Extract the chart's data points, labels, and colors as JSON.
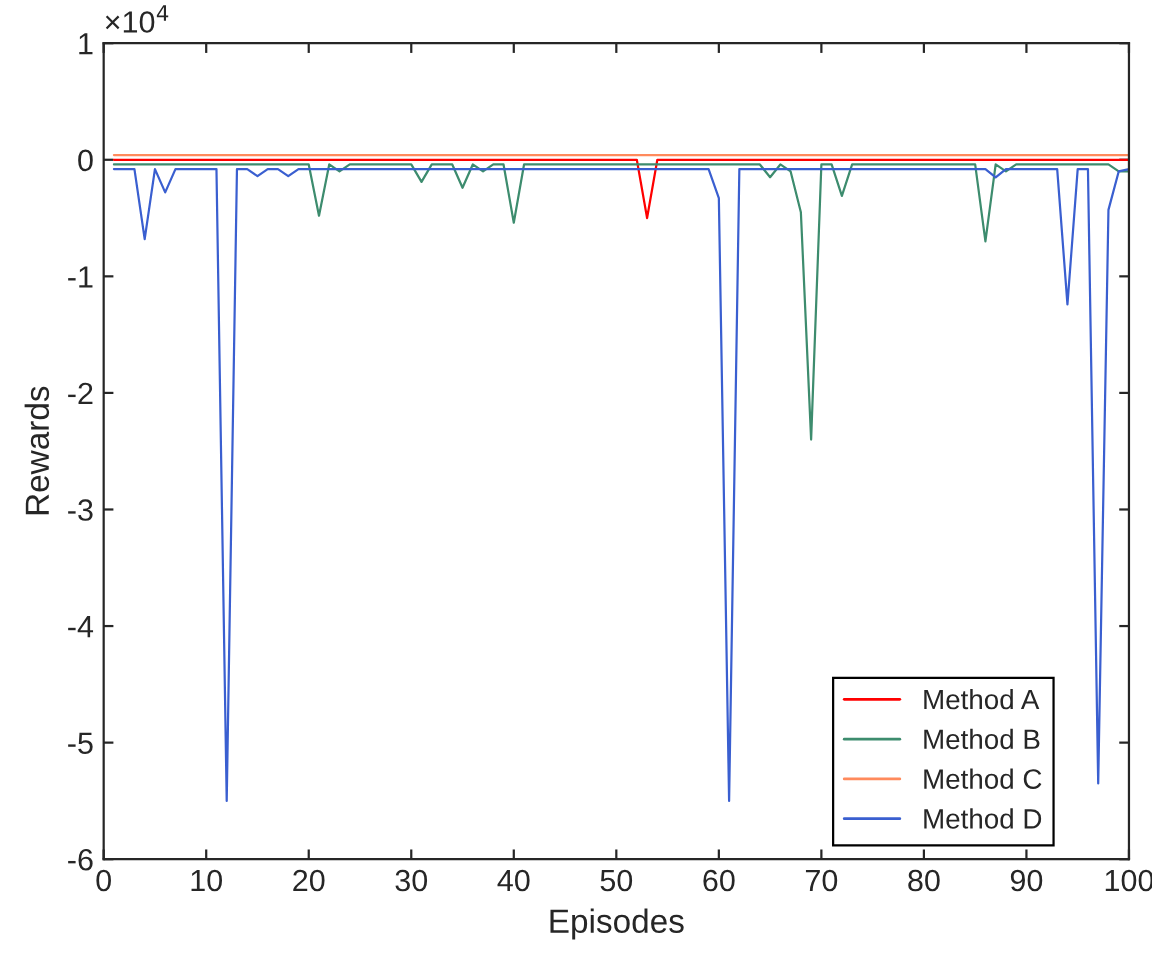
{
  "chart_data": {
    "type": "line",
    "xlabel": "Episodes",
    "ylabel": "Rewards",
    "annotations": [
      "×10$^{4}$"
    ],
    "x": [
      1,
      2,
      3,
      4,
      5,
      6,
      7,
      8,
      9,
      10,
      11,
      12,
      13,
      14,
      15,
      16,
      17,
      18,
      19,
      20,
      21,
      22,
      23,
      24,
      25,
      26,
      27,
      28,
      29,
      30,
      31,
      32,
      33,
      34,
      35,
      36,
      37,
      38,
      39,
      40,
      41,
      42,
      43,
      44,
      45,
      46,
      47,
      48,
      49,
      50,
      51,
      52,
      53,
      54,
      55,
      56,
      57,
      58,
      59,
      60,
      61,
      62,
      63,
      64,
      65,
      66,
      67,
      68,
      69,
      70,
      71,
      72,
      73,
      74,
      75,
      76,
      77,
      78,
      79,
      80,
      81,
      82,
      83,
      84,
      85,
      86,
      87,
      88,
      89,
      90,
      91,
      92,
      93,
      94,
      95,
      96,
      97,
      98,
      99,
      100
    ],
    "series": [
      {
        "name": "Method A",
        "color": "#ff0000",
        "values": [
          0,
          0,
          0,
          0,
          0,
          0,
          0,
          0,
          0,
          0,
          0,
          0,
          0,
          0,
          0,
          0,
          0,
          0,
          0,
          0,
          0,
          0,
          0,
          0,
          0,
          0,
          0,
          0,
          0,
          0,
          0,
          0,
          0,
          0,
          0,
          0,
          0,
          0,
          0,
          0,
          0,
          0,
          0,
          0,
          0,
          0,
          0,
          0,
          0,
          0,
          0,
          0,
          -0.5,
          0,
          0,
          0,
          0,
          0,
          0,
          0,
          0,
          0,
          0,
          0,
          0,
          0,
          0,
          0,
          0,
          0,
          0,
          0,
          0,
          0,
          0,
          0,
          0,
          0,
          0,
          0,
          0,
          0,
          0,
          0,
          0,
          0,
          0,
          0,
          0,
          0,
          0,
          0,
          0,
          0,
          0,
          0,
          0,
          0,
          0,
          0
        ]
      },
      {
        "name": "Method B",
        "color": "#3d8c6e",
        "values": [
          -0.04,
          -0.04,
          -0.04,
          -0.04,
          -0.04,
          -0.04,
          -0.04,
          -0.04,
          -0.04,
          -0.04,
          -0.04,
          -0.04,
          -0.04,
          -0.04,
          -0.04,
          -0.04,
          -0.04,
          -0.04,
          -0.04,
          -0.04,
          -0.48,
          -0.04,
          -0.1,
          -0.04,
          -0.04,
          -0.04,
          -0.04,
          -0.04,
          -0.04,
          -0.04,
          -0.19,
          -0.04,
          -0.04,
          -0.04,
          -0.24,
          -0.04,
          -0.1,
          -0.04,
          -0.04,
          -0.54,
          -0.04,
          -0.04,
          -0.04,
          -0.04,
          -0.04,
          -0.04,
          -0.04,
          -0.04,
          -0.04,
          -0.04,
          -0.04,
          -0.04,
          -0.04,
          -0.04,
          -0.04,
          -0.04,
          -0.04,
          -0.04,
          -0.04,
          -0.04,
          -0.04,
          -0.04,
          -0.04,
          -0.04,
          -0.15,
          -0.04,
          -0.1,
          -0.45,
          -2.4,
          -0.04,
          -0.04,
          -0.31,
          -0.04,
          -0.04,
          -0.04,
          -0.04,
          -0.04,
          -0.04,
          -0.04,
          -0.04,
          -0.04,
          -0.04,
          -0.04,
          -0.04,
          -0.04,
          -0.7,
          -0.04,
          -0.1,
          -0.04,
          -0.04,
          -0.04,
          -0.04,
          -0.04,
          -0.04,
          -0.04,
          -0.04,
          -0.04,
          -0.04,
          -0.1,
          -0.1
        ]
      },
      {
        "name": "Method C",
        "color": "#ff8a5c",
        "values": [
          0.04,
          0.04,
          0.04,
          0.04,
          0.04,
          0.04,
          0.04,
          0.04,
          0.04,
          0.04,
          0.04,
          0.04,
          0.04,
          0.04,
          0.04,
          0.04,
          0.04,
          0.04,
          0.04,
          0.04,
          0.04,
          0.04,
          0.04,
          0.04,
          0.04,
          0.04,
          0.04,
          0.04,
          0.04,
          0.04,
          0.04,
          0.04,
          0.04,
          0.04,
          0.04,
          0.04,
          0.04,
          0.04,
          0.04,
          0.04,
          0.04,
          0.04,
          0.04,
          0.04,
          0.04,
          0.04,
          0.04,
          0.04,
          0.04,
          0.04,
          0.04,
          0.04,
          0.04,
          0.04,
          0.04,
          0.04,
          0.04,
          0.04,
          0.04,
          0.04,
          0.04,
          0.04,
          0.04,
          0.04,
          0.04,
          0.04,
          0.04,
          0.04,
          0.04,
          0.04,
          0.04,
          0.04,
          0.04,
          0.04,
          0.04,
          0.04,
          0.04,
          0.04,
          0.04,
          0.04,
          0.04,
          0.04,
          0.04,
          0.04,
          0.04,
          0.04,
          0.04,
          0.04,
          0.04,
          0.04,
          0.04,
          0.04,
          0.04,
          0.04,
          0.04,
          0.04,
          0.04,
          0.04,
          0.04,
          0.04
        ]
      },
      {
        "name": "Method D",
        "color": "#3a5fd0",
        "values": [
          -0.08,
          -0.08,
          -0.08,
          -0.68,
          -0.08,
          -0.28,
          -0.08,
          -0.08,
          -0.08,
          -0.08,
          -0.08,
          -5.5,
          -0.08,
          -0.08,
          -0.14,
          -0.08,
          -0.08,
          -0.14,
          -0.08,
          -0.08,
          -0.08,
          -0.08,
          -0.08,
          -0.08,
          -0.08,
          -0.08,
          -0.08,
          -0.08,
          -0.08,
          -0.08,
          -0.08,
          -0.08,
          -0.08,
          -0.08,
          -0.08,
          -0.08,
          -0.08,
          -0.08,
          -0.08,
          -0.08,
          -0.08,
          -0.08,
          -0.08,
          -0.08,
          -0.08,
          -0.08,
          -0.08,
          -0.08,
          -0.08,
          -0.08,
          -0.08,
          -0.08,
          -0.08,
          -0.08,
          -0.08,
          -0.08,
          -0.08,
          -0.08,
          -0.08,
          -0.33,
          -5.5,
          -0.08,
          -0.08,
          -0.08,
          -0.08,
          -0.08,
          -0.08,
          -0.08,
          -0.08,
          -0.08,
          -0.08,
          -0.08,
          -0.08,
          -0.08,
          -0.08,
          -0.08,
          -0.08,
          -0.08,
          -0.08,
          -0.08,
          -0.08,
          -0.08,
          -0.08,
          -0.08,
          -0.08,
          -0.08,
          -0.15,
          -0.08,
          -0.08,
          -0.08,
          -0.08,
          -0.08,
          -0.08,
          -1.24,
          -0.08,
          -0.08,
          -5.35,
          -0.43,
          -0.1,
          -0.08
        ]
      }
    ],
    "xlim": [
      0,
      100
    ],
    "xticks": [
      0,
      10,
      20,
      30,
      40,
      50,
      60,
      70,
      80,
      90,
      100
    ],
    "ylim": [
      -6,
      1
    ],
    "yticks": [
      -6,
      -5,
      -4,
      -3,
      -2,
      -1,
      0,
      1
    ],
    "grid": false,
    "legend": "bottom right",
    "marker": "none",
    "line_style": "solid"
  }
}
